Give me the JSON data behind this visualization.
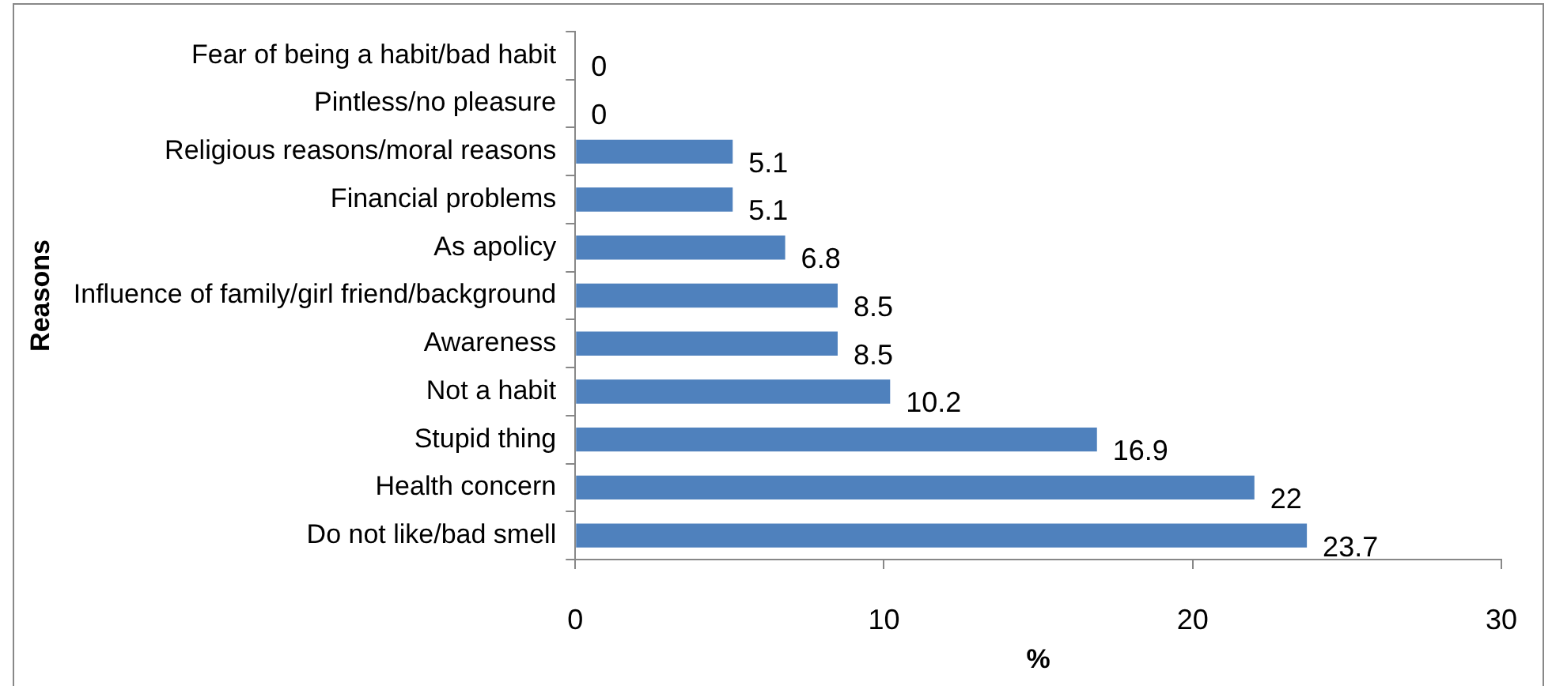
{
  "chart_data": {
    "type": "bar",
    "orientation": "horizontal",
    "xlabel": "%",
    "ylabel": "Reasons",
    "categories": [
      "Fear of being a habit/bad habit",
      "Pintless/no pleasure",
      "Religious reasons/moral reasons",
      "Financial problems",
      "As apolicy",
      "Influence of family/girl friend/background",
      "Awareness",
      "Not a habit",
      "Stupid thing",
      "Health concern",
      "Do not like/bad smell"
    ],
    "values": [
      0,
      0,
      5.1,
      5.1,
      6.8,
      8.5,
      8.5,
      10.2,
      16.9,
      22,
      23.7
    ],
    "color": "#4f81bd",
    "xlim": [
      0,
      30
    ],
    "xticks": [
      0,
      10,
      20,
      30
    ],
    "grid": false,
    "legend": false,
    "data_labels": true
  }
}
